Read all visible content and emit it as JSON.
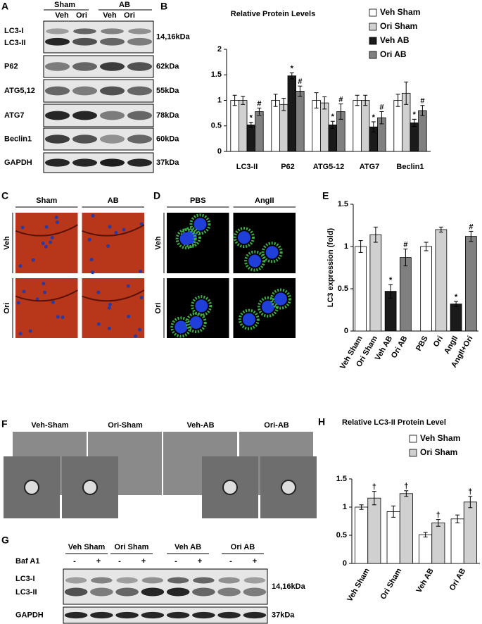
{
  "panels": {
    "A": {
      "letter": "A",
      "groups": [
        "Sham",
        "AB"
      ],
      "lanes": [
        "Veh",
        "Ori",
        "Veh",
        "Ori"
      ],
      "rows": [
        {
          "labels": [
            "LC3-I",
            "LC3-II"
          ],
          "size": "14,16kDa"
        },
        {
          "labels": [
            "P62"
          ],
          "size": "62kDa"
        },
        {
          "labels": [
            "ATG5,12"
          ],
          "size": "55kDa"
        },
        {
          "labels": [
            "ATG7"
          ],
          "size": "78kDa"
        },
        {
          "labels": [
            "Beclin1"
          ],
          "size": "60kDa"
        },
        {
          "labels": [
            "GAPDH"
          ],
          "size": "37kDa"
        }
      ]
    },
    "C": {
      "letter": "C",
      "columns": [
        "Sham",
        "AB"
      ],
      "rows": [
        "Veh",
        "Ori"
      ]
    },
    "D": {
      "letter": "D",
      "columns": [
        "PBS",
        "AngII"
      ],
      "rows": [
        "Veh",
        "Ori"
      ]
    },
    "F": {
      "letter": "F",
      "columns": [
        "Veh-Sham",
        "Ori-Sham",
        "Veh-AB",
        "Ori-AB"
      ]
    },
    "G": {
      "letter": "G",
      "groups": [
        "Veh Sham",
        "Ori Sham",
        "Veh AB",
        "Ori AB"
      ],
      "treatment": "Baf A1",
      "treatment_states": [
        "-",
        "+",
        "-",
        "+",
        "-",
        "+",
        "-",
        "+"
      ],
      "rows": [
        {
          "labels": [
            "LC3-I",
            "LC3-II"
          ],
          "size": "14,16kDa"
        },
        {
          "labels": [
            "GAPDH"
          ],
          "size": "37kDa"
        }
      ]
    }
  },
  "chart_data": [
    {
      "letter": "B",
      "type": "bar",
      "title": "Relative Protein Levels",
      "categories": [
        "LC3-II",
        "P62",
        "ATG5-12",
        "ATG7",
        "Beclin1"
      ],
      "series": [
        {
          "name": "Veh Sham",
          "color": "#ffffff",
          "values": [
            1.0,
            1.0,
            1.0,
            1.0,
            1.0
          ],
          "errors": [
            0.1,
            0.12,
            0.15,
            0.1,
            0.12
          ]
        },
        {
          "name": "Ori Sham",
          "color": "#d0d0d0",
          "values": [
            1.0,
            0.92,
            0.95,
            1.0,
            1.14
          ],
          "errors": [
            0.08,
            0.12,
            0.12,
            0.1,
            0.22
          ]
        },
        {
          "name": "Veh AB",
          "color": "#1a1a1a",
          "values": [
            0.52,
            1.48,
            0.52,
            0.48,
            0.56
          ],
          "errors": [
            0.05,
            0.06,
            0.07,
            0.1,
            0.07
          ],
          "markers": [
            "*",
            "*",
            "*",
            "*",
            "*"
          ]
        },
        {
          "name": "Ori AB",
          "color": "#808080",
          "values": [
            0.78,
            1.18,
            0.78,
            0.66,
            0.8
          ],
          "errors": [
            0.07,
            0.1,
            0.15,
            0.12,
            0.1
          ],
          "markers": [
            "#",
            "#",
            "#",
            "#",
            "#"
          ]
        }
      ],
      "ylim": [
        0,
        2
      ],
      "yticks": [
        0,
        0.5,
        1,
        1.5,
        2
      ]
    },
    {
      "letter": "E",
      "type": "bar",
      "y_label": "LC3 expression (fold)",
      "categories": [
        "Veh Sham",
        "Ori Sham",
        "Veh AB",
        "Ori AB",
        "PBS",
        "Ori",
        "AngII",
        "AngII+Ori"
      ],
      "values": [
        1.0,
        1.14,
        0.47,
        0.87,
        1.0,
        1.2,
        0.32,
        1.12
      ],
      "errors": [
        0.07,
        0.09,
        0.08,
        0.1,
        0.05,
        0.03,
        0.03,
        0.06
      ],
      "colors": [
        "#ffffff",
        "#d0d0d0",
        "#1a1a1a",
        "#808080",
        "#ffffff",
        "#d0d0d0",
        "#1a1a1a",
        "#808080"
      ],
      "markers": [
        null,
        null,
        "*",
        "#",
        null,
        null,
        "*",
        "#"
      ],
      "ylim": [
        0,
        1.5
      ],
      "yticks": [
        0,
        0.5,
        1,
        1.5
      ]
    },
    {
      "letter": "H",
      "type": "bar",
      "title": "Relative LC3-II Protein Level",
      "categories": [
        "Veh Sham",
        "Ori Sham",
        "Veh AB",
        "Ori AB"
      ],
      "series": [
        {
          "name": "Veh Sham",
          "color": "#ffffff",
          "values": [
            1.0,
            0.92,
            0.51,
            0.79
          ],
          "errors": [
            0.04,
            0.1,
            0.04,
            0.07
          ]
        },
        {
          "name": "Ori Sham",
          "color": "#d0d0d0",
          "values": [
            1.16,
            1.24,
            0.72,
            1.09
          ],
          "errors": [
            0.12,
            0.05,
            0.06,
            0.1
          ],
          "markers": [
            "†",
            "†",
            "†",
            "†"
          ]
        }
      ],
      "ylim": [
        0,
        1.5
      ],
      "yticks": [
        0,
        0.5,
        1,
        1.5
      ]
    }
  ]
}
